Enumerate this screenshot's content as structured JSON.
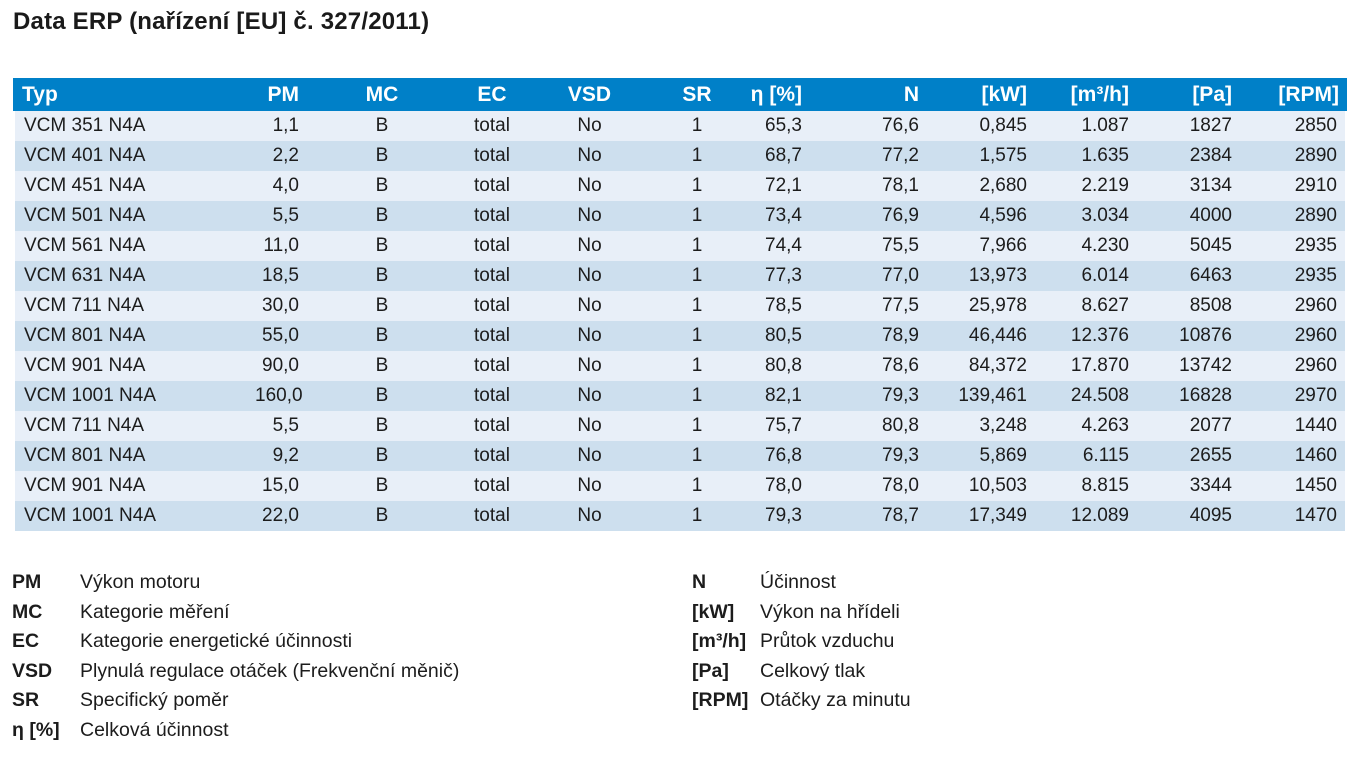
{
  "title": "Data ERP (nařízení [EU] č. 327/2011)",
  "table": {
    "columns": [
      {
        "label": "Typ",
        "align": "left"
      },
      {
        "label": "PM",
        "align": "right"
      },
      {
        "label": "MC",
        "align": "center"
      },
      {
        "label": "EC",
        "align": "center"
      },
      {
        "label": "VSD",
        "align": "center"
      },
      {
        "label": "SR",
        "align": "center"
      },
      {
        "label": "η [%]",
        "align": "right"
      },
      {
        "label": "N",
        "align": "right"
      },
      {
        "label": "[kW]",
        "align": "right"
      },
      {
        "label": "[m³/h]",
        "align": "right"
      },
      {
        "label": "[Pa]",
        "align": "right"
      },
      {
        "label": "[RPM]",
        "align": "right"
      }
    ],
    "rows": [
      [
        "VCM 351 N4A",
        "1,1",
        "B",
        "total",
        "No",
        "1",
        "65,3",
        "76,6",
        "0,845",
        "1.087",
        "1827",
        "2850"
      ],
      [
        "VCM 401 N4A",
        "2,2",
        "B",
        "total",
        "No",
        "1",
        "68,7",
        "77,2",
        "1,575",
        "1.635",
        "2384",
        "2890"
      ],
      [
        "VCM 451 N4A",
        "4,0",
        "B",
        "total",
        "No",
        "1",
        "72,1",
        "78,1",
        "2,680",
        "2.219",
        "3134",
        "2910"
      ],
      [
        "VCM 501 N4A",
        "5,5",
        "B",
        "total",
        "No",
        "1",
        "73,4",
        "76,9",
        "4,596",
        "3.034",
        "4000",
        "2890"
      ],
      [
        "VCM 561 N4A",
        "11,0",
        "B",
        "total",
        "No",
        "1",
        "74,4",
        "75,5",
        "7,966",
        "4.230",
        "5045",
        "2935"
      ],
      [
        "VCM 631 N4A",
        "18,5",
        "B",
        "total",
        "No",
        "1",
        "77,3",
        "77,0",
        "13,973",
        "6.014",
        "6463",
        "2935"
      ],
      [
        "VCM 711 N4A",
        "30,0",
        "B",
        "total",
        "No",
        "1",
        "78,5",
        "77,5",
        "25,978",
        "8.627",
        "8508",
        "2960"
      ],
      [
        "VCM 801 N4A",
        "55,0",
        "B",
        "total",
        "No",
        "1",
        "80,5",
        "78,9",
        "46,446",
        "12.376",
        "10876",
        "2960"
      ],
      [
        "VCM 901 N4A",
        "90,0",
        "B",
        "total",
        "No",
        "1",
        "80,8",
        "78,6",
        "84,372",
        "17.870",
        "13742",
        "2960"
      ],
      [
        "VCM 1001 N4A",
        "160,0",
        "B",
        "total",
        "No",
        "1",
        "82,1",
        "79,3",
        "139,461",
        "24.508",
        "16828",
        "2970"
      ],
      [
        "VCM 711 N4A",
        "5,5",
        "B",
        "total",
        "No",
        "1",
        "75,7",
        "80,8",
        "3,248",
        "4.263",
        "2077",
        "1440"
      ],
      [
        "VCM 801 N4A",
        "9,2",
        "B",
        "total",
        "No",
        "1",
        "76,8",
        "79,3",
        "5,869",
        "6.115",
        "2655",
        "1460"
      ],
      [
        "VCM 901 N4A",
        "15,0",
        "B",
        "total",
        "No",
        "1",
        "78,0",
        "78,0",
        "10,503",
        "8.815",
        "3344",
        "1450"
      ],
      [
        "VCM 1001 N4A",
        "22,0",
        "B",
        "total",
        "No",
        "1",
        "79,3",
        "78,7",
        "17,349",
        "12.089",
        "4095",
        "1470"
      ]
    ]
  },
  "legend": {
    "left": [
      {
        "term": "PM",
        "definition": "Výkon motoru"
      },
      {
        "term": "MC",
        "definition": "Kategorie měření"
      },
      {
        "term": "EC",
        "definition": "Kategorie energetické účinnosti"
      },
      {
        "term": "VSD",
        "definition": "Plynulá regulace otáček (Frekvenční měnič)"
      },
      {
        "term": "SR",
        "definition": "Specifický poměr"
      },
      {
        "term": "η [%]",
        "definition": "Celková účinnost"
      }
    ],
    "right": [
      {
        "term": "N",
        "definition": "Účinnost"
      },
      {
        "term": "[kW]",
        "definition": "Výkon na hřídeli"
      },
      {
        "term": "[m³/h]",
        "definition": "Průtok vzduchu"
      },
      {
        "term": "[Pa]",
        "definition": "Celkový tlak"
      },
      {
        "term": "[RPM]",
        "definition": "Otáčky za minutu"
      }
    ]
  },
  "colors": {
    "header_bg": "#0080C8",
    "row_light": "#E8EFF8",
    "row_dark": "#CDDFEE",
    "header_text": "#FFFFFF",
    "body_text": "#1C1C1C"
  }
}
